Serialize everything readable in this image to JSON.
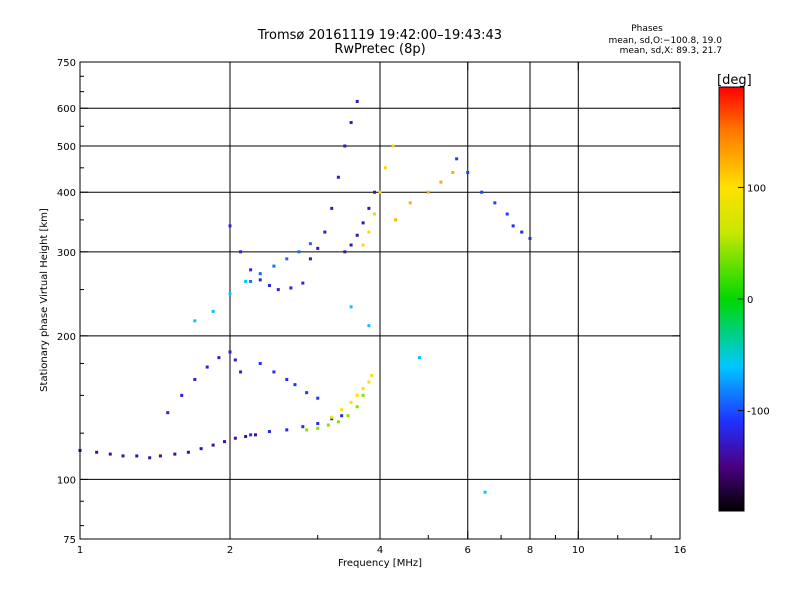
{
  "chart_data": {
    "type": "scatter",
    "title": "Tromsø 20161119 19:42:00–19:43:43",
    "subtitle": "RwPretec (8p)",
    "phases_box": {
      "title": "Phases",
      "line_o": "mean, sd,O:−100.8, 19.0",
      "line_x": "mean, sd,X:  89.3, 21.7"
    },
    "xlabel": "Frequency [MHz]",
    "ylabel": "Stationary phase Virtual Height [km]",
    "x_scale": "log2",
    "y_scale": "log",
    "xlim": [
      1,
      16
    ],
    "ylim": [
      75,
      750
    ],
    "x_ticks": [
      {
        "value": 1,
        "label": "1"
      },
      {
        "value": 2,
        "label": "2"
      },
      {
        "value": 4,
        "label": "4"
      },
      {
        "value": 6,
        "label": "6"
      },
      {
        "value": 8,
        "label": "8"
      },
      {
        "value": 10,
        "label": "10"
      },
      {
        "value": 16,
        "label": "16"
      }
    ],
    "x_grid": [
      2,
      4,
      6,
      8,
      10
    ],
    "y_ticks": [
      {
        "value": 75,
        "label": "75"
      },
      {
        "value": 100,
        "label": "100"
      },
      {
        "value": 200,
        "label": "200"
      },
      {
        "value": 300,
        "label": "300"
      },
      {
        "value": 400,
        "label": "400"
      },
      {
        "value": 500,
        "label": "500"
      },
      {
        "value": 600,
        "label": "600"
      },
      {
        "value": 750,
        "label": "750"
      }
    ],
    "y_grid": [
      100,
      200,
      300,
      400,
      500,
      600
    ],
    "grid": true,
    "colorbar": {
      "label": "[deg]",
      "range": [
        -190,
        190
      ],
      "ticks": [
        {
          "value": 100,
          "label": "100"
        },
        {
          "value": 0,
          "label": "0"
        },
        {
          "value": -100,
          "label": "-100"
        }
      ],
      "stops": [
        {
          "value": -190,
          "color": "#000000"
        },
        {
          "value": -150,
          "color": "#4b0082"
        },
        {
          "value": -110,
          "color": "#2030ff"
        },
        {
          "value": -60,
          "color": "#00c8ff"
        },
        {
          "value": 0,
          "color": "#00d800"
        },
        {
          "value": 60,
          "color": "#c8e800"
        },
        {
          "value": 100,
          "color": "#ffe000"
        },
        {
          "value": 150,
          "color": "#ff7a00"
        },
        {
          "value": 190,
          "color": "#ff0000"
        }
      ]
    },
    "series": [
      {
        "x": [
          1.0,
          1.08,
          1.15,
          1.22,
          1.3,
          1.38,
          1.45,
          1.55,
          1.65,
          1.75,
          1.85,
          1.95,
          2.05,
          2.15,
          2.25
        ],
        "y": [
          115,
          114,
          113,
          112,
          112,
          111,
          112,
          113,
          114,
          116,
          118,
          120,
          122,
          123,
          124
        ],
        "phase": -140
      },
      {
        "x": [
          2.2,
          2.4,
          2.6,
          2.8,
          3.0,
          3.2,
          3.35
        ],
        "y": [
          124,
          126,
          127,
          129,
          131,
          134,
          136
        ],
        "phase": -115
      },
      {
        "x": [
          2.85,
          3.0,
          3.15,
          3.3,
          3.45,
          3.6,
          3.7
        ],
        "y": [
          127,
          128,
          130,
          132,
          136,
          142,
          150
        ],
        "phase": 40
      },
      {
        "x": [
          3.2,
          3.35,
          3.5,
          3.6,
          3.7,
          3.8,
          3.85
        ],
        "y": [
          135,
          140,
          145,
          150,
          155,
          160,
          165
        ],
        "phase": 95
      },
      {
        "x": [
          1.5,
          1.6,
          1.7,
          1.8,
          1.9,
          2.0,
          2.05,
          2.1
        ],
        "y": [
          138,
          150,
          162,
          172,
          180,
          185,
          178,
          168
        ],
        "phase": -125
      },
      {
        "x": [
          2.3,
          2.45,
          2.6,
          2.7,
          2.85,
          3.0
        ],
        "y": [
          175,
          168,
          162,
          158,
          152,
          148
        ],
        "phase": -110
      },
      {
        "x": [
          2.2,
          2.3,
          2.45,
          2.6,
          2.75,
          2.9
        ],
        "y": [
          260,
          270,
          280,
          290,
          300,
          312
        ],
        "phase": -90
      },
      {
        "x": [
          2.0,
          2.1,
          2.2,
          2.3,
          2.4,
          2.5,
          2.65,
          2.8
        ],
        "y": [
          340,
          300,
          275,
          262,
          255,
          250,
          252,
          258
        ],
        "phase": -120
      },
      {
        "x": [
          2.9,
          3.0,
          3.1,
          3.2,
          3.3,
          3.4,
          3.5,
          3.6
        ],
        "y": [
          290,
          305,
          330,
          370,
          430,
          500,
          560,
          620
        ],
        "phase": -130
      },
      {
        "x": [
          3.4,
          3.5,
          3.6,
          3.7,
          3.8,
          3.9
        ],
        "y": [
          300,
          310,
          325,
          345,
          370,
          400
        ],
        "phase": -135
      },
      {
        "x": [
          3.7,
          3.8,
          3.9,
          4.0,
          4.1,
          4.25
        ],
        "y": [
          310,
          330,
          360,
          400,
          450,
          500
        ],
        "phase": 105
      },
      {
        "x": [
          4.3,
          4.6,
          5.0,
          5.3,
          5.6
        ],
        "y": [
          350,
          380,
          400,
          420,
          440
        ],
        "phase": 125
      },
      {
        "x": [
          5.7,
          6.0,
          6.4,
          6.8,
          7.2
        ],
        "y": [
          470,
          440,
          400,
          380,
          360
        ],
        "phase": -105
      },
      {
        "x": [
          7.4,
          7.7,
          8.0
        ],
        "y": [
          340,
          330,
          320
        ],
        "phase": -115
      },
      {
        "x": [
          1.7,
          1.85,
          2.0,
          2.15,
          3.5,
          3.8,
          4.8,
          6.5
        ],
        "y": [
          215,
          225,
          245,
          260,
          230,
          210,
          180,
          94
        ],
        "phase": -60
      }
    ]
  }
}
